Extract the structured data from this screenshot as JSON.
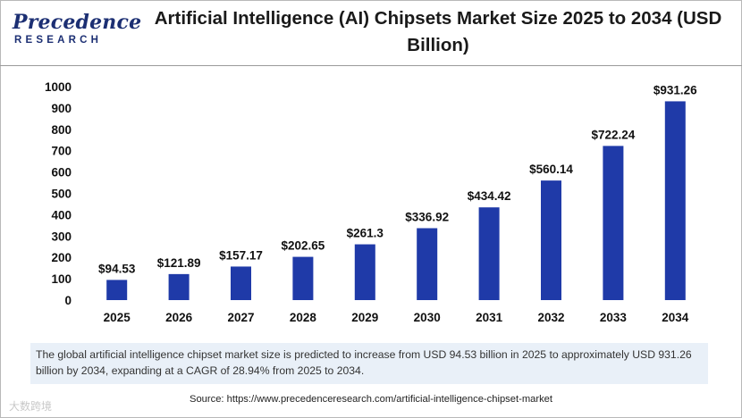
{
  "brand": {
    "logo_main": "Precedence",
    "logo_sub": "RESEARCH",
    "color": "#1c2f73"
  },
  "title": "Artificial Intelligence (AI) Chipsets Market Size 2025 to 2034 (USD Billion)",
  "chart_data": {
    "type": "bar",
    "title": "Artificial Intelligence (AI) Chipsets Market Size 2025 to 2034 (USD Billion)",
    "categories": [
      "2025",
      "2026",
      "2027",
      "2028",
      "2029",
      "2030",
      "2031",
      "2032",
      "2033",
      "2034"
    ],
    "values": [
      94.53,
      121.89,
      157.17,
      202.65,
      261.3,
      336.92,
      434.42,
      560.14,
      722.24,
      931.26
    ],
    "data_labels": [
      "$94.53",
      "$121.89",
      "$157.17",
      "$202.65",
      "$261.3",
      "$336.92",
      "$434.42",
      "$560.14",
      "$722.24",
      "$931.26"
    ],
    "xlabel": "",
    "ylabel": "",
    "ylim": [
      0,
      1000
    ],
    "yticks": [
      0,
      100,
      200,
      300,
      400,
      500,
      600,
      700,
      800,
      900,
      1000
    ],
    "grid": false,
    "bar_color": "#1f3aa8"
  },
  "note": "The global artificial intelligence chipset market size is predicted to increase from USD 94.53 billion in 2025 to approximately USD 931.26 billion by 2034, expanding at a CAGR of 28.94% from 2025 to 2034.",
  "source": "Source: https://www.precedenceresearch.com/artificial-intelligence-chipset-market",
  "watermark": "大数跨境"
}
